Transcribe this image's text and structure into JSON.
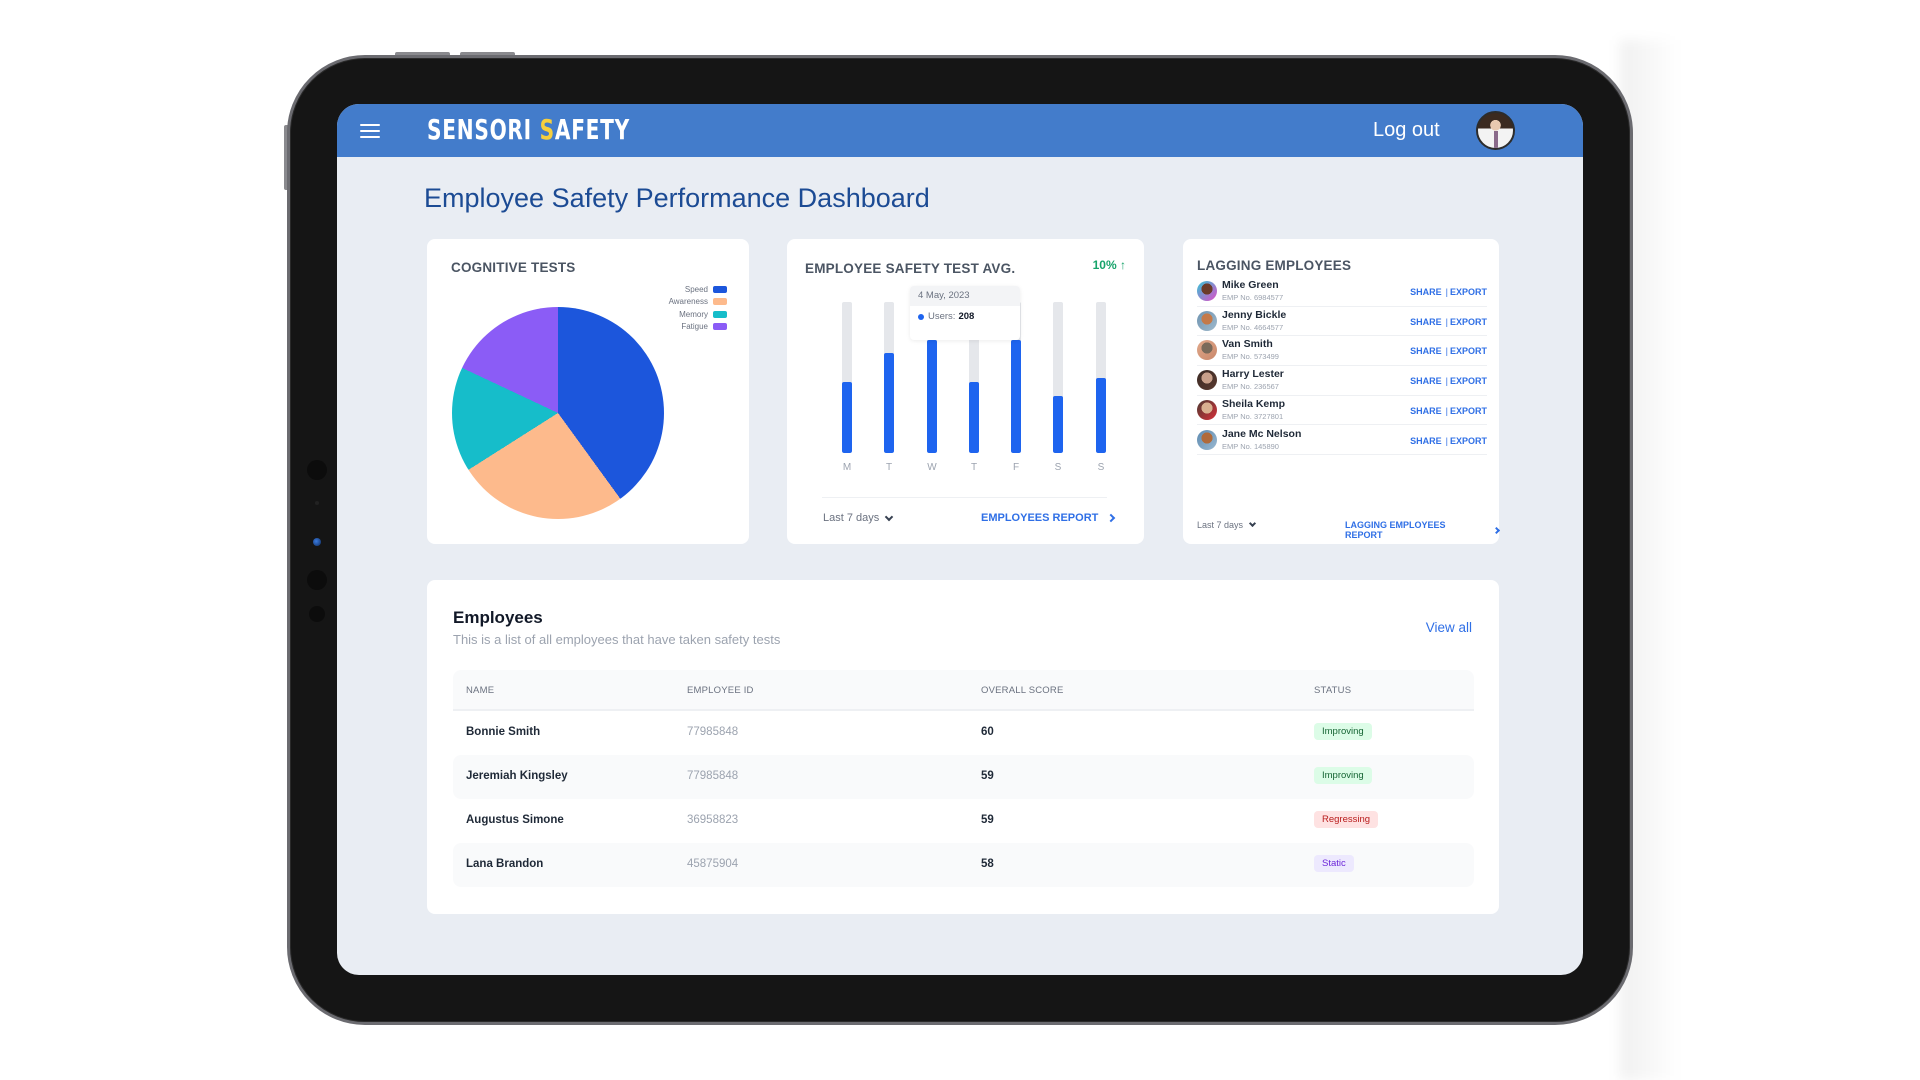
{
  "header": {
    "menu_icon": "hamburger-menu-icon",
    "logo_part1": "SENSORI ",
    "logo_accent": "S",
    "logo_part2": "AFETY",
    "logout_label": "Log out",
    "avatar_icon": "user-avatar"
  },
  "page": {
    "title": "Employee Safety Performance Dashboard"
  },
  "colors": {
    "header_bg": "#437CCB",
    "logo_accent": "#F6CF3E",
    "title": "#1C4B94",
    "link": "#2F6FE6",
    "bar": "#1E64EF",
    "trend_up": "#16A36A"
  },
  "cognitive": {
    "title": "COGNITIVE TESTS",
    "legend": [
      {
        "label": "Speed",
        "color": "#1C56DC"
      },
      {
        "label": "Awareness",
        "color": "#FDBA8C"
      },
      {
        "label": "Memory",
        "color": "#16BDCA"
      },
      {
        "label": "Fatigue",
        "color": "#8B5CF6"
      }
    ]
  },
  "safety_avg": {
    "title": "EMPLOYEE SAFETY TEST AVG.",
    "trend": "10%",
    "trend_icon": "arrow-up-icon",
    "tooltip": {
      "date": "4 May, 2023",
      "label": "Users:",
      "value": "208"
    },
    "period": "Last 7 days",
    "report_link": "EMPLOYEES REPORT"
  },
  "lagging": {
    "title": "LAGGING EMPLOYEES",
    "share_label": "SHARE",
    "export_label": "EXPORT",
    "separator": "|",
    "employees": [
      {
        "name": "Mike Green",
        "emp": "EMP No. 6984577"
      },
      {
        "name": "Jenny Bickle",
        "emp": "EMP No. 4664577"
      },
      {
        "name": "Van Smith",
        "emp": "EMP No. 573499"
      },
      {
        "name": "Harry Lester",
        "emp": "EMP No. 236567"
      },
      {
        "name": "Sheila Kemp",
        "emp": "EMP No. 3727801"
      },
      {
        "name": "Jane Mc Nelson",
        "emp": "EMP No. 145890"
      }
    ],
    "period": "Last 7 days",
    "report_link": "LAGGING EMPLOYEES REPORT"
  },
  "employees": {
    "title": "Employees",
    "subtitle": "This is a list of all employees that have taken safety tests",
    "view_all": "View all",
    "columns": [
      "NAME",
      "EMPLOYEE ID",
      "OVERALL SCORE",
      "STATUS"
    ],
    "rows": [
      {
        "name": "Bonnie Smith",
        "id": "77985848",
        "score": "60",
        "status": "Improving"
      },
      {
        "name": "Jeremiah Kingsley",
        "id": "77985848",
        "score": "59",
        "status": "Improving"
      },
      {
        "name": "Augustus Simone",
        "id": "36958823",
        "score": "59",
        "status": "Regressing"
      },
      {
        "name": "Lana Brandon",
        "id": "45875904",
        "score": "58",
        "status": "Static"
      }
    ]
  },
  "chart_data": [
    {
      "type": "pie",
      "title": "COGNITIVE TESTS",
      "categories": [
        "Speed",
        "Awareness",
        "Memory",
        "Fatigue"
      ],
      "values": [
        40,
        26,
        16,
        18
      ],
      "colors": [
        "#1C56DC",
        "#FDBA8C",
        "#16BDCA",
        "#8B5CF6"
      ],
      "legend_position": "top-right"
    },
    {
      "type": "bar",
      "title": "EMPLOYEE SAFETY TEST AVG.",
      "categories": [
        "M",
        "T",
        "W",
        "T",
        "F",
        "S",
        "S"
      ],
      "values": [
        47,
        66,
        75,
        47,
        75,
        38,
        50
      ],
      "value_unit": "percent of max",
      "ylim": [
        0,
        100
      ],
      "grid": false,
      "annotation": {
        "date": "4 May, 2023",
        "label": "Users",
        "value": 208
      },
      "trend": "10% up"
    }
  ]
}
